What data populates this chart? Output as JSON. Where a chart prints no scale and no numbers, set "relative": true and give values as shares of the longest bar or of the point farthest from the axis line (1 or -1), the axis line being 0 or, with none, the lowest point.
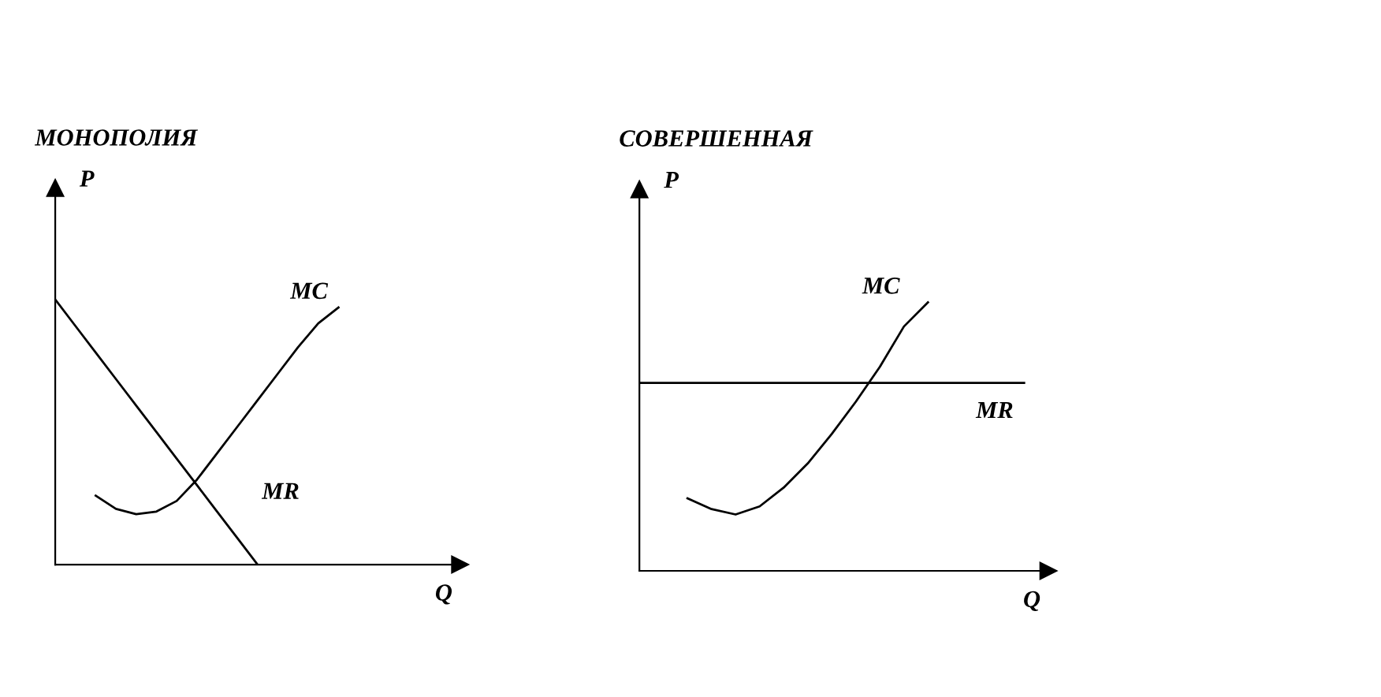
{
  "chart_data": [
    {
      "type": "line",
      "title": "МОНОПОЛИЯ",
      "xlabel": "Q",
      "ylabel": "P",
      "relative": true,
      "legend": false,
      "grid": false,
      "marker": "none",
      "line_style": "solid",
      "categories": [
        null,
        null,
        null,
        null,
        null,
        null,
        null,
        null,
        null,
        null,
        null,
        null,
        null,
        null,
        null,
        null,
        null,
        null,
        null,
        null,
        null
      ],
      "series": [
        {
          "name": "MC",
          "color": "#000000",
          "values": [
            null,
            null,
            0.26,
            0.21,
            0.19,
            0.2,
            0.24,
            0.32,
            0.42,
            0.52,
            0.62,
            0.72,
            0.82,
            0.91,
            0.97,
            null,
            null,
            null,
            null,
            null,
            null
          ]
        },
        {
          "name": "MR",
          "color": "#000000",
          "values": [
            1,
            0.9,
            0.8,
            0.7,
            0.6,
            0.5,
            0.4,
            0.3,
            0.2,
            0.1,
            0,
            null,
            null,
            null,
            null,
            null,
            null,
            null,
            null,
            null,
            null
          ]
        }
      ]
    },
    {
      "type": "line",
      "title": "СОВЕРШЕННАЯ",
      "xlabel": "Q",
      "ylabel": "P",
      "relative": true,
      "legend": false,
      "grid": false,
      "marker": "none",
      "line_style": "solid",
      "categories": [
        null,
        null,
        null,
        null,
        null,
        null,
        null,
        null,
        null,
        null,
        null,
        null,
        null,
        null,
        null,
        null,
        null,
        null
      ],
      "series": [
        {
          "name": "MC",
          "color": "#000000",
          "values": [
            null,
            null,
            0.27,
            0.23,
            0.21,
            0.24,
            0.31,
            0.4,
            0.51,
            0.63,
            0.76,
            0.91,
            1.0,
            null,
            null,
            null,
            null,
            null
          ]
        },
        {
          "name": "MR",
          "color": "#000000",
          "values": [
            0.7,
            0.7,
            0.7,
            0.7,
            0.7,
            0.7,
            0.7,
            0.7,
            0.7,
            0.7,
            0.7,
            0.7,
            0.7,
            0.7,
            0.7,
            0.7,
            0.7,
            null
          ]
        }
      ]
    }
  ]
}
